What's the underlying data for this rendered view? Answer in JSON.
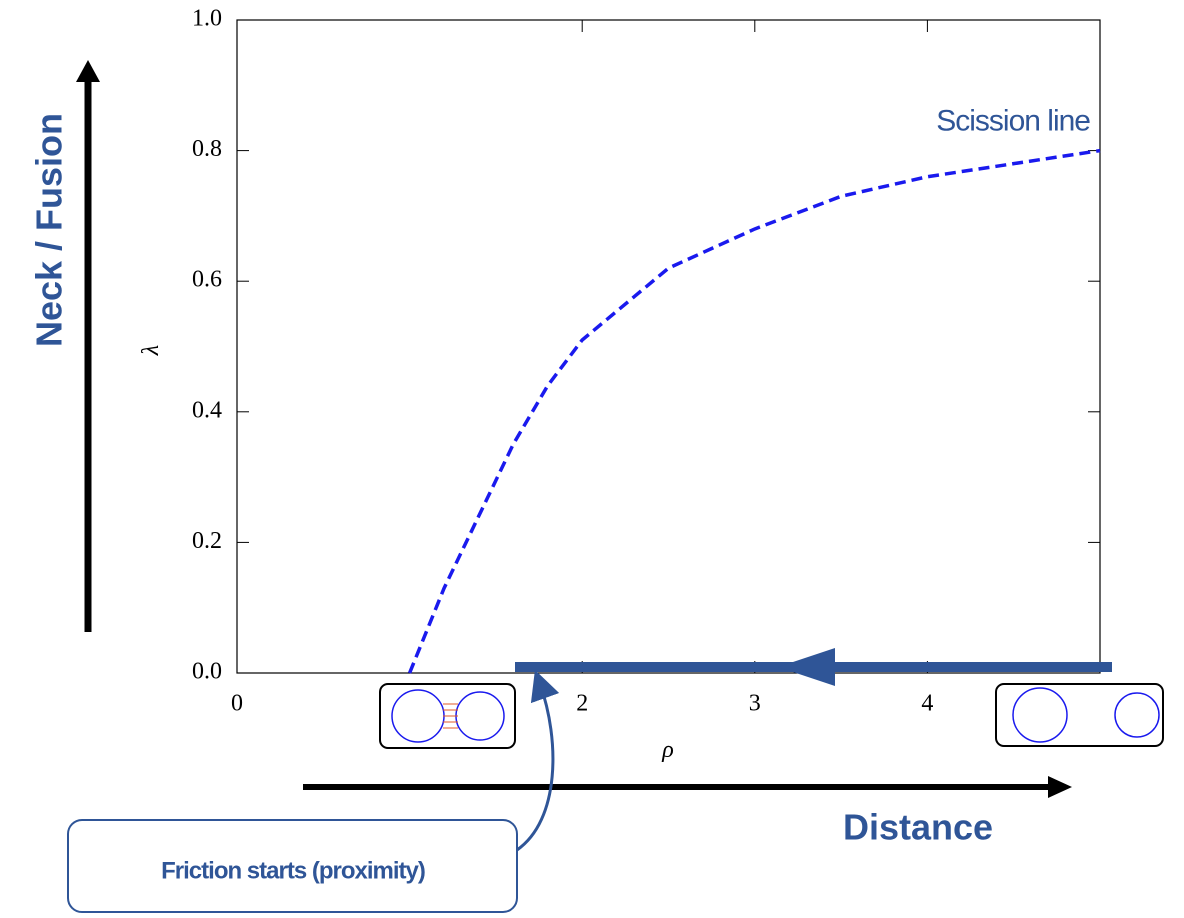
{
  "chart_data": {
    "type": "line",
    "x": [
      1,
      1.2,
      1.4,
      1.6,
      1.8,
      2,
      2.5,
      3,
      3.5,
      4,
      4.5,
      5
    ],
    "series": [
      {
        "name": "Scission line",
        "color": "#1a1aee",
        "values": [
          0,
          0.13,
          0.24,
          0.35,
          0.44,
          0.51,
          0.62,
          0.68,
          0.73,
          0.76,
          0.78,
          0.8
        ]
      }
    ],
    "xlim": [
      0,
      5
    ],
    "xticks": [
      0,
      2,
      3,
      4
    ],
    "ylim": [
      0,
      1
    ],
    "yticks": [
      {
        "value": 0,
        "label": "0.0"
      },
      {
        "value": 0.2,
        "label": "0.2"
      },
      {
        "value": 0.4,
        "label": "0.4"
      },
      {
        "value": 0.6,
        "label": "0.6"
      },
      {
        "value": 0.8,
        "label": "0.8"
      },
      {
        "value": 1,
        "label": "1.0"
      }
    ],
    "xlabel": "ρ",
    "ylabel": "λ",
    "annotations": {
      "y_arrow": "Neck / Fusion",
      "x_arrow": "Distance",
      "callout": "Friction starts (proximity)"
    }
  }
}
